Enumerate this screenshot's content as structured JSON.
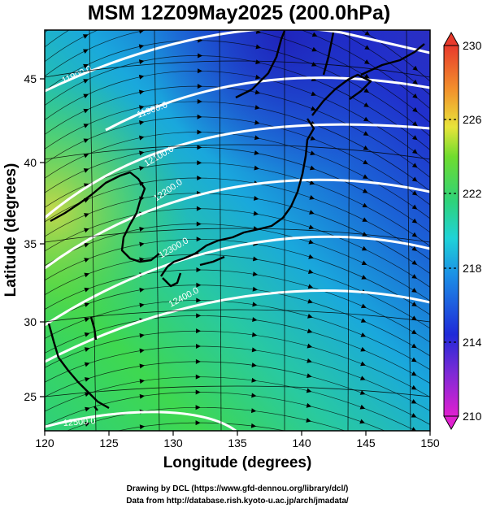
{
  "title": "MSM 12Z09May2025 (200.0hPa)",
  "xaxis": {
    "label": "Longitude (degrees)",
    "range": [
      120,
      150
    ],
    "ticks": [
      "120",
      "125",
      "130",
      "135",
      "140",
      "145",
      "150"
    ]
  },
  "yaxis": {
    "label": "Latitude  (degrees)",
    "range": [
      22.5,
      47.6
    ],
    "ticks": [
      "25",
      "30",
      "35",
      "40",
      "45"
    ]
  },
  "colorbar": {
    "range": [
      210,
      230
    ],
    "ticks": [
      "210",
      "214",
      "218",
      "222",
      "226",
      "230"
    ],
    "colors": [
      "#e020d0",
      "#1f2ad8",
      "#1fb8ee",
      "#2fd37a",
      "#6fdc2e",
      "#e8e43a",
      "#f2922c",
      "#e83a2c"
    ]
  },
  "contours": [
    {
      "label": "11900.0"
    },
    {
      "label": "11900.0"
    },
    {
      "label": "12100.0"
    },
    {
      "label": "12200.0"
    },
    {
      "label": "12300.0"
    },
    {
      "label": "12400.0"
    },
    {
      "label": "12500.0"
    }
  ],
  "footer": {
    "line1": "Drawing by DCL (https://www.gfd-dennou.org/library/dcl/)",
    "line2": "Data from http://database.rish.kyoto-u.ac.jp/arch/jmadata/"
  }
}
